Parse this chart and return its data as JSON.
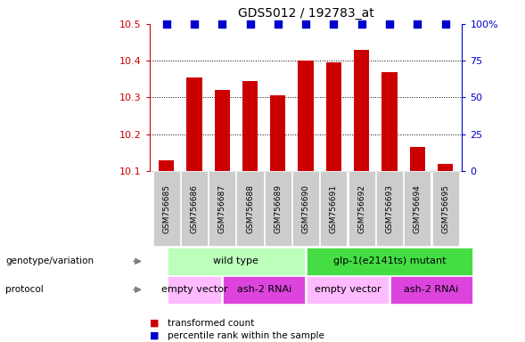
{
  "title": "GDS5012 / 192783_at",
  "samples": [
    "GSM756685",
    "GSM756686",
    "GSM756687",
    "GSM756688",
    "GSM756689",
    "GSM756690",
    "GSM756691",
    "GSM756692",
    "GSM756693",
    "GSM756694",
    "GSM756695"
  ],
  "bar_values": [
    10.13,
    10.355,
    10.32,
    10.345,
    10.305,
    10.4,
    10.395,
    10.43,
    10.37,
    10.165,
    10.12
  ],
  "percentile_values": [
    100,
    100,
    100,
    100,
    100,
    100,
    100,
    100,
    100,
    100,
    100
  ],
  "ylim_left": [
    10.1,
    10.5
  ],
  "ylim_right": [
    0,
    100
  ],
  "yticks_left": [
    10.1,
    10.2,
    10.3,
    10.4,
    10.5
  ],
  "yticks_right": [
    0,
    25,
    50,
    75,
    100
  ],
  "ytick_labels_right": [
    "0",
    "25",
    "50",
    "75",
    "100%"
  ],
  "bar_color": "#cc0000",
  "dot_color": "#0000cc",
  "background_color": "#ffffff",
  "genotype_groups": [
    {
      "label": "wild type",
      "start": 0,
      "end": 5,
      "color": "#bbffbb"
    },
    {
      "label": "glp-1(e2141ts) mutant",
      "start": 5,
      "end": 11,
      "color": "#44dd44"
    }
  ],
  "protocol_groups": [
    {
      "label": "empty vector",
      "start": 0,
      "end": 2,
      "color": "#ffbbff"
    },
    {
      "label": "ash-2 RNAi",
      "start": 2,
      "end": 5,
      "color": "#dd44dd"
    },
    {
      "label": "empty vector",
      "start": 5,
      "end": 8,
      "color": "#ffbbff"
    },
    {
      "label": "ash-2 RNAi",
      "start": 8,
      "end": 11,
      "color": "#dd44dd"
    }
  ],
  "legend_items": [
    {
      "label": "transformed count",
      "color": "#cc0000"
    },
    {
      "label": "percentile rank within the sample",
      "color": "#0000cc"
    }
  ],
  "left_axis_color": "#cc0000",
  "right_axis_color": "#0000cc",
  "bar_width": 0.55,
  "dot_size": 30,
  "genotype_label": "genotype/variation",
  "protocol_label": "protocol",
  "xtick_bg": "#cccccc",
  "grid_yticks": [
    10.2,
    10.3,
    10.4
  ]
}
